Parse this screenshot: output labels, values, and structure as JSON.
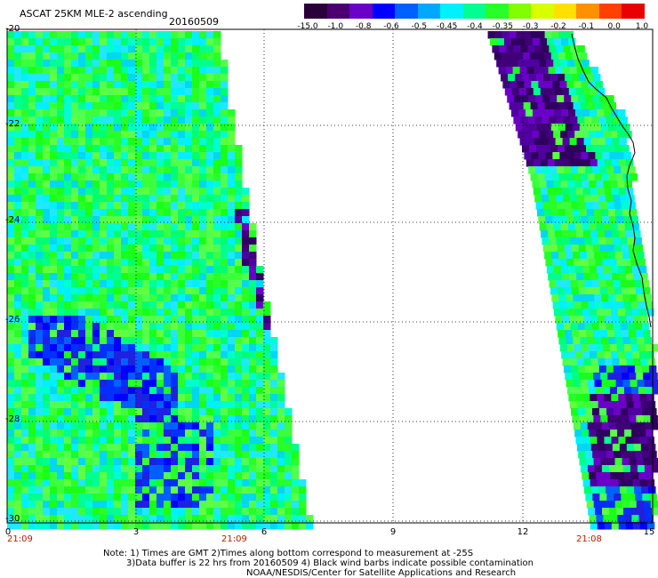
{
  "header": {
    "title": "ASCAT 25KM MLE-2 ascending",
    "date": "20160509"
  },
  "colorbar": {
    "labels": [
      "-15.0",
      "-1.0",
      "-0.8",
      "-0.6",
      "-0.5",
      "-0.45",
      "-0.4",
      "-0.35",
      "-0.3",
      "-0.2",
      "-0.1",
      "0.0",
      "1.0"
    ],
    "colors": [
      "#2a0038",
      "#4a0070",
      "#6a00c8",
      "#0000ff",
      "#0060ff",
      "#00a8ff",
      "#00f0ff",
      "#00ff90",
      "#28ff28",
      "#80ff00",
      "#d8ff00",
      "#ffe000",
      "#ff9000",
      "#ff4000",
      "#e80000"
    ]
  },
  "axes": {
    "y_labels": [
      "-20",
      "-22",
      "-24",
      "-26",
      "-28",
      "-30"
    ],
    "x_labels": [
      "0",
      "3",
      "6",
      "9",
      "12",
      "15"
    ]
  },
  "times": {
    "t1": "21:09",
    "t2": "21:09",
    "t3": "21:08"
  },
  "notes": {
    "line1": "Note: 1) Times are GMT 2)Times along bottom correspond to measurement at -25S",
    "line2": "3)Data buffer is 22 hrs from 20160509 4) Black wind barbs indicate possible contamination",
    "line3": "NOAA/NESDIS/Center for Satellite Applications and Research"
  }
}
